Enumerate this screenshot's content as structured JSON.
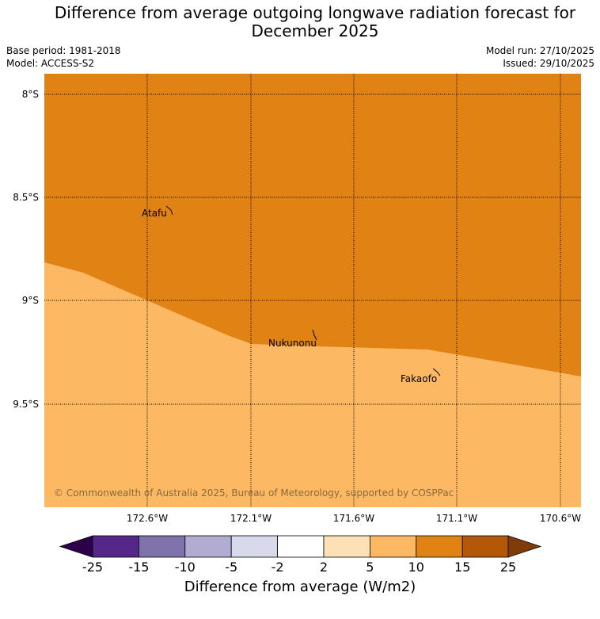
{
  "header": {
    "title_line1": "Difference from average outgoing longwave radiation forecast for",
    "title_line2": "December 2025",
    "base_period": "Base period: 1981-2018",
    "model": "Model: ACCESS-S2",
    "model_run": "Model run: 27/10/2025",
    "issued": "Issued: 29/10/2025"
  },
  "map": {
    "lat_labels": [
      "8°S",
      "8.5°S",
      "9°S",
      "9.5°S"
    ],
    "lon_labels": [
      "172.6°W",
      "172.1°W",
      "171.6°W",
      "171.1°W",
      "170.6°W"
    ],
    "places": [
      {
        "name": "Atafu"
      },
      {
        "name": "Nukunonu"
      },
      {
        "name": "Fakaofo"
      }
    ],
    "copyright": "© Commonwealth of Australia 2025, Bureau of Meteorology, supported by COSPPac",
    "fill_colors": {
      "upper": "#e08214",
      "lower": "#fdb863"
    }
  },
  "colorbar": {
    "title": "Difference from average (W/m2)",
    "ticks": [
      "-25",
      "-15",
      "-10",
      "-5",
      "-2",
      "2",
      "5",
      "10",
      "15",
      "25"
    ],
    "colors": [
      "#2d004b",
      "#542788",
      "#8073ac",
      "#b2abd2",
      "#d8daeb",
      "#ffffff",
      "#fee0b6",
      "#fdb863",
      "#e08214",
      "#b35806",
      "#7f3b08"
    ]
  }
}
